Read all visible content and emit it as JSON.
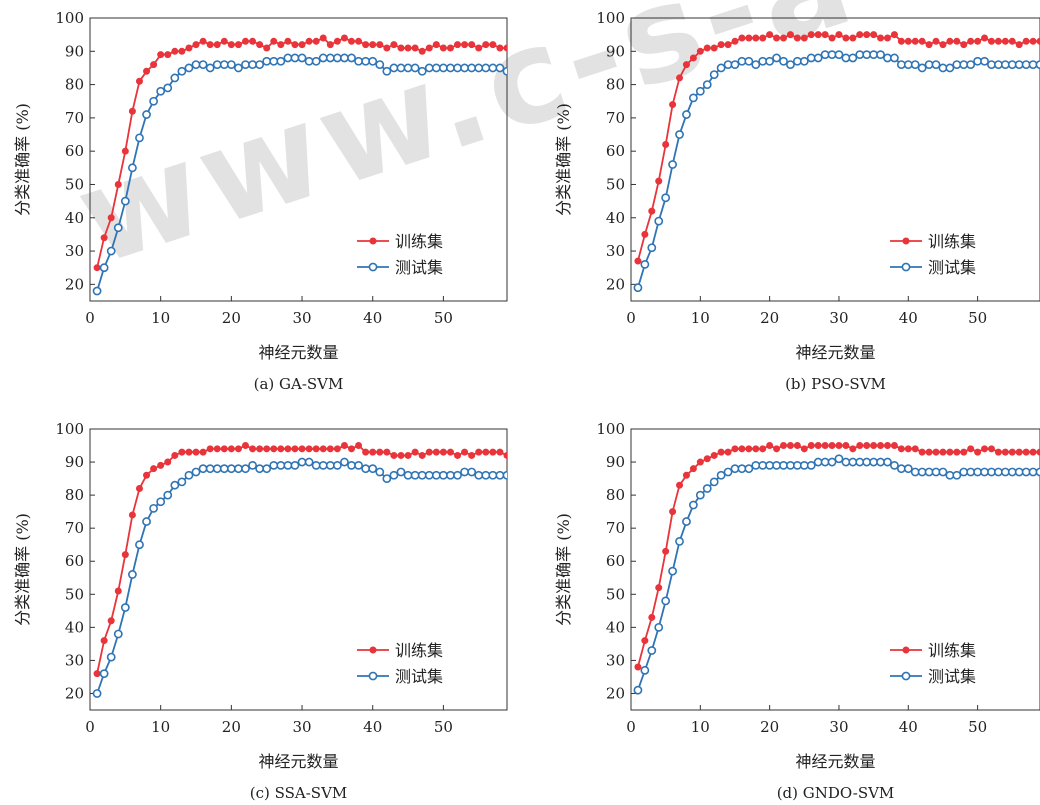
{
  "watermark": "www.c-s-a",
  "style": {
    "train_color": "#e8343a",
    "test_color": "#2f74b5",
    "frame_color": "#333333"
  },
  "chart_data": [
    {
      "type": "line",
      "caption": "(a) GA-SVM",
      "xlabel": "神经元数量",
      "ylabel": "分类准确率 (%)",
      "xlim": [
        0,
        59
      ],
      "ylim": [
        15,
        100
      ],
      "xticks": [
        0,
        10,
        20,
        30,
        40,
        50
      ],
      "yticks": [
        20,
        30,
        40,
        50,
        60,
        70,
        80,
        90,
        100
      ],
      "legend_position": "lower-right",
      "x": [
        1,
        2,
        3,
        4,
        5,
        6,
        7,
        8,
        9,
        10,
        11,
        12,
        13,
        14,
        15,
        16,
        17,
        18,
        19,
        20,
        21,
        22,
        23,
        24,
        25,
        26,
        27,
        28,
        29,
        30,
        31,
        32,
        33,
        34,
        35,
        36,
        37,
        38,
        39,
        40,
        41,
        42,
        43,
        44,
        45,
        46,
        47,
        48,
        49,
        50,
        51,
        52,
        53,
        54,
        55,
        56,
        57,
        58,
        59
      ],
      "series": [
        {
          "name": "训练集",
          "values": [
            25,
            34,
            40,
            50,
            60,
            72,
            81,
            84,
            86,
            89,
            89,
            90,
            90,
            91,
            92,
            93,
            92,
            92,
            93,
            92,
            92,
            93,
            93,
            92,
            91,
            93,
            92,
            93,
            92,
            92,
            93,
            93,
            94,
            92,
            93,
            94,
            93,
            93,
            92,
            92,
            92,
            91,
            92,
            91,
            91,
            91,
            90,
            91,
            92,
            91,
            91,
            92,
            92,
            92,
            91,
            92,
            92,
            91,
            91
          ]
        },
        {
          "name": "测试集",
          "values": [
            18,
            25,
            30,
            37,
            45,
            55,
            64,
            71,
            75,
            78,
            79,
            82,
            84,
            85,
            86,
            86,
            85,
            86,
            86,
            86,
            85,
            86,
            86,
            86,
            87,
            87,
            87,
            88,
            88,
            88,
            87,
            87,
            88,
            88,
            88,
            88,
            88,
            87,
            87,
            87,
            86,
            84,
            85,
            85,
            85,
            85,
            84,
            85,
            85,
            85,
            85,
            85,
            85,
            85,
            85,
            85,
            85,
            85,
            84
          ]
        }
      ]
    },
    {
      "type": "line",
      "caption": "(b) PSO-SVM",
      "xlabel": "神经元数量",
      "ylabel": "分类准确率 (%)",
      "xlim": [
        0,
        59
      ],
      "ylim": [
        15,
        100
      ],
      "xticks": [
        0,
        10,
        20,
        30,
        40,
        50
      ],
      "yticks": [
        20,
        30,
        40,
        50,
        60,
        70,
        80,
        90,
        100
      ],
      "legend_position": "lower-right",
      "x": [
        1,
        2,
        3,
        4,
        5,
        6,
        7,
        8,
        9,
        10,
        11,
        12,
        13,
        14,
        15,
        16,
        17,
        18,
        19,
        20,
        21,
        22,
        23,
        24,
        25,
        26,
        27,
        28,
        29,
        30,
        31,
        32,
        33,
        34,
        35,
        36,
        37,
        38,
        39,
        40,
        41,
        42,
        43,
        44,
        45,
        46,
        47,
        48,
        49,
        50,
        51,
        52,
        53,
        54,
        55,
        56,
        57,
        58,
        59
      ],
      "series": [
        {
          "name": "训练集",
          "values": [
            27,
            35,
            42,
            51,
            62,
            74,
            82,
            86,
            88,
            90,
            91,
            91,
            92,
            92,
            93,
            94,
            94,
            94,
            94,
            95,
            94,
            94,
            95,
            94,
            94,
            95,
            95,
            95,
            94,
            95,
            94,
            94,
            95,
            95,
            95,
            94,
            94,
            95,
            93,
            93,
            93,
            93,
            92,
            93,
            92,
            93,
            93,
            92,
            93,
            93,
            94,
            93,
            93,
            93,
            93,
            92,
            93,
            93,
            93
          ]
        },
        {
          "name": "测试集",
          "values": [
            19,
            26,
            31,
            39,
            46,
            56,
            65,
            71,
            76,
            78,
            80,
            83,
            85,
            86,
            86,
            87,
            87,
            86,
            87,
            87,
            88,
            87,
            86,
            87,
            87,
            88,
            88,
            89,
            89,
            89,
            88,
            88,
            89,
            89,
            89,
            89,
            88,
            88,
            86,
            86,
            86,
            85,
            86,
            86,
            85,
            85,
            86,
            86,
            86,
            87,
            87,
            86,
            86,
            86,
            86,
            86,
            86,
            86,
            86
          ]
        }
      ]
    },
    {
      "type": "line",
      "caption": "(c) SSA-SVM",
      "xlabel": "神经元数量",
      "ylabel": "分类准确率 (%)",
      "xlim": [
        0,
        59
      ],
      "ylim": [
        15,
        100
      ],
      "xticks": [
        0,
        10,
        20,
        30,
        40,
        50
      ],
      "yticks": [
        20,
        30,
        40,
        50,
        60,
        70,
        80,
        90,
        100
      ],
      "legend_position": "lower-right",
      "x": [
        1,
        2,
        3,
        4,
        5,
        6,
        7,
        8,
        9,
        10,
        11,
        12,
        13,
        14,
        15,
        16,
        17,
        18,
        19,
        20,
        21,
        22,
        23,
        24,
        25,
        26,
        27,
        28,
        29,
        30,
        31,
        32,
        33,
        34,
        35,
        36,
        37,
        38,
        39,
        40,
        41,
        42,
        43,
        44,
        45,
        46,
        47,
        48,
        49,
        50,
        51,
        52,
        53,
        54,
        55,
        56,
        57,
        58,
        59
      ],
      "series": [
        {
          "name": "训练集",
          "values": [
            26,
            36,
            42,
            51,
            62,
            74,
            82,
            86,
            88,
            89,
            90,
            92,
            93,
            93,
            93,
            93,
            94,
            94,
            94,
            94,
            94,
            95,
            94,
            94,
            94,
            94,
            94,
            94,
            94,
            94,
            94,
            94,
            94,
            94,
            94,
            95,
            94,
            95,
            93,
            93,
            93,
            93,
            92,
            92,
            92,
            93,
            92,
            93,
            93,
            93,
            93,
            92,
            93,
            92,
            93,
            93,
            93,
            93,
            92
          ]
        },
        {
          "name": "测试集",
          "values": [
            20,
            26,
            31,
            38,
            46,
            56,
            65,
            72,
            76,
            78,
            80,
            83,
            84,
            86,
            87,
            88,
            88,
            88,
            88,
            88,
            88,
            88,
            89,
            88,
            88,
            89,
            89,
            89,
            89,
            90,
            90,
            89,
            89,
            89,
            89,
            90,
            89,
            89,
            88,
            88,
            87,
            85,
            86,
            87,
            86,
            86,
            86,
            86,
            86,
            86,
            86,
            86,
            87,
            87,
            86,
            86,
            86,
            86,
            86
          ]
        }
      ]
    },
    {
      "type": "line",
      "caption": "(d) GNDO-SVM",
      "xlabel": "神经元数量",
      "ylabel": "分类准确率 (%)",
      "xlim": [
        0,
        59
      ],
      "ylim": [
        15,
        100
      ],
      "xticks": [
        0,
        10,
        20,
        30,
        40,
        50
      ],
      "yticks": [
        20,
        30,
        40,
        50,
        60,
        70,
        80,
        90,
        100
      ],
      "legend_position": "lower-right",
      "x": [
        1,
        2,
        3,
        4,
        5,
        6,
        7,
        8,
        9,
        10,
        11,
        12,
        13,
        14,
        15,
        16,
        17,
        18,
        19,
        20,
        21,
        22,
        23,
        24,
        25,
        26,
        27,
        28,
        29,
        30,
        31,
        32,
        33,
        34,
        35,
        36,
        37,
        38,
        39,
        40,
        41,
        42,
        43,
        44,
        45,
        46,
        47,
        48,
        49,
        50,
        51,
        52,
        53,
        54,
        55,
        56,
        57,
        58,
        59
      ],
      "series": [
        {
          "name": "训练集",
          "values": [
            28,
            36,
            43,
            52,
            63,
            75,
            83,
            86,
            88,
            90,
            91,
            92,
            93,
            93,
            94,
            94,
            94,
            94,
            94,
            95,
            94,
            95,
            95,
            95,
            94,
            95,
            95,
            95,
            95,
            95,
            95,
            94,
            95,
            95,
            95,
            95,
            95,
            95,
            94,
            94,
            94,
            93,
            93,
            93,
            93,
            93,
            93,
            93,
            94,
            93,
            94,
            94,
            93,
            93,
            93,
            93,
            93,
            93,
            93
          ]
        },
        {
          "name": "测试集",
          "values": [
            21,
            27,
            33,
            40,
            48,
            57,
            66,
            72,
            77,
            80,
            82,
            84,
            86,
            87,
            88,
            88,
            88,
            89,
            89,
            89,
            89,
            89,
            89,
            89,
            89,
            89,
            90,
            90,
            90,
            91,
            90,
            90,
            90,
            90,
            90,
            90,
            90,
            89,
            88,
            88,
            87,
            87,
            87,
            87,
            87,
            86,
            86,
            87,
            87,
            87,
            87,
            87,
            87,
            87,
            87,
            87,
            87,
            87,
            87
          ]
        }
      ]
    }
  ]
}
